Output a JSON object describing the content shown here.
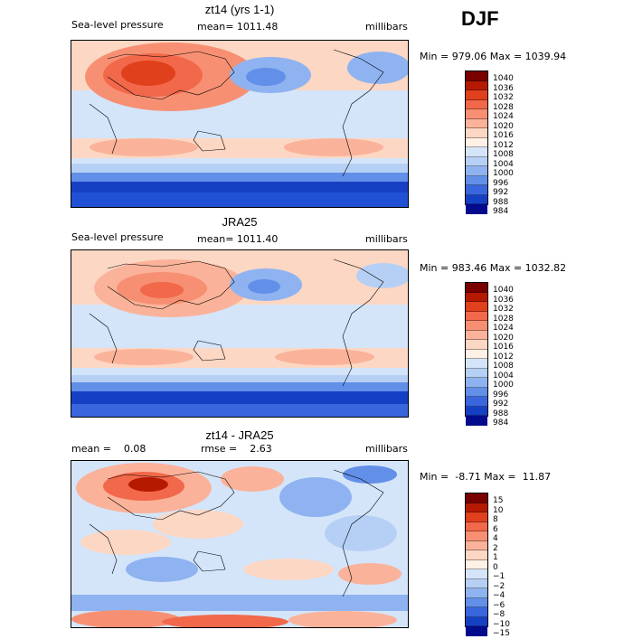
{
  "season": "DJF",
  "panels": [
    {
      "title": "zt14 (yrs 1-1)",
      "sub_left": "Sea-level pressure",
      "sub_mid": "mean= 1011.48",
      "sub_right": "millibars",
      "minmax": "Min = 979.06 Max = 1039.94",
      "levels": [
        "1040",
        "1036",
        "1032",
        "1028",
        "1024",
        "1020",
        "1016",
        "1012",
        "1008",
        "1004",
        "1000",
        "996",
        "992",
        "988",
        "984"
      ]
    },
    {
      "title": "JRA25",
      "sub_left": "Sea-level pressure",
      "sub_mid": "mean= 1011.40",
      "sub_right": "millibars",
      "minmax": "Min = 983.46 Max = 1032.82",
      "levels": [
        "1040",
        "1036",
        "1032",
        "1028",
        "1024",
        "1020",
        "1016",
        "1012",
        "1008",
        "1004",
        "1000",
        "996",
        "992",
        "988",
        "984"
      ]
    },
    {
      "title": "zt14 - JRA25",
      "sub_left": "mean =    0.08",
      "sub_mid": "rmse =    2.63",
      "sub_right": "millibars",
      "minmax": "Min =  -8.71 Max =  11.87",
      "levels": [
        "15",
        "10",
        "8",
        "6",
        "4",
        "2",
        "1",
        "0",
        "−1",
        "−2",
        "−4",
        "−6",
        "−8",
        "−10",
        "−15"
      ]
    }
  ],
  "colors": [
    "#7a0000",
    "#b51a00",
    "#e0401c",
    "#f2684a",
    "#f79073",
    "#fab39a",
    "#fcd7c4",
    "#fff1e6",
    "#d4e5fa",
    "#b6d0f5",
    "#8fb3f0",
    "#628fe8",
    "#3a66dd",
    "#1640c4",
    "#030a8c"
  ]
}
